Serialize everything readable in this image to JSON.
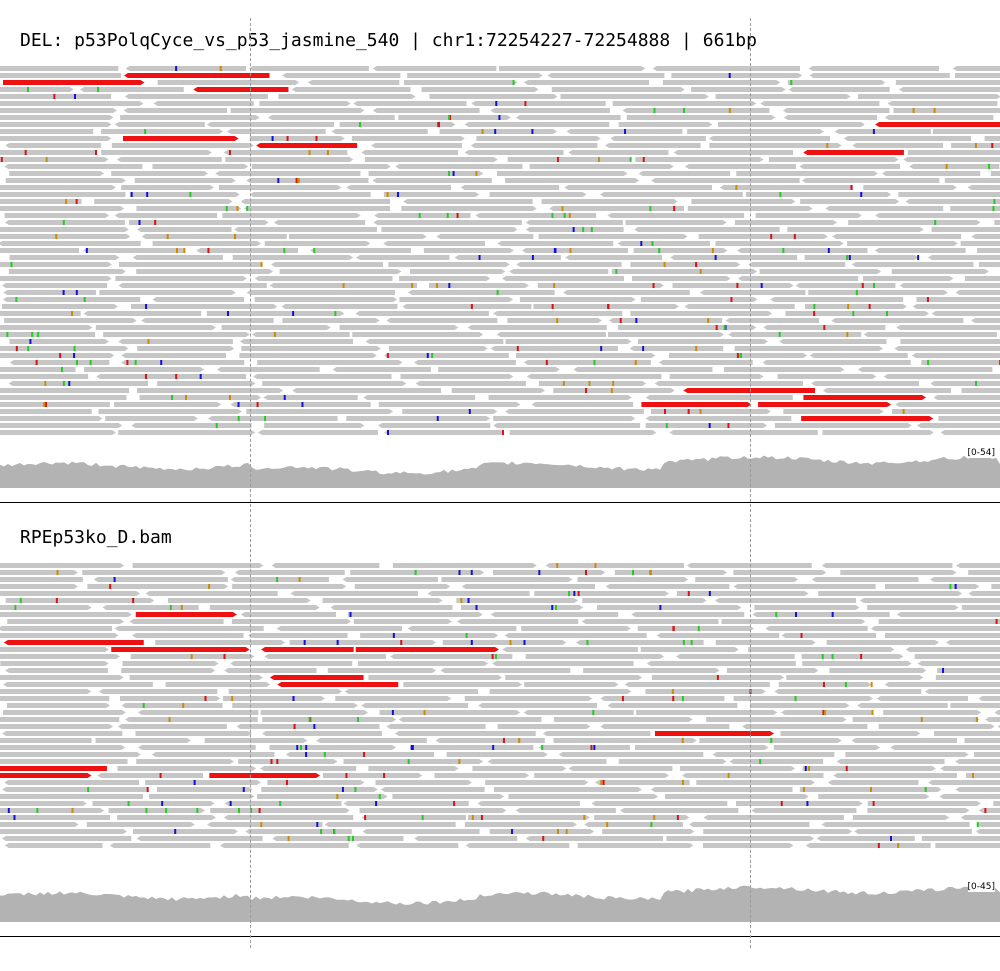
{
  "panels": [
    {
      "title": "DEL: p53PolqCyce_vs_p53_jasmine_540 | chr1:72254227-72254888 | 661bp",
      "coverage_range": "[0-54]"
    },
    {
      "title": "RPEp53ko_D.bam",
      "coverage_range": "[0-45]"
    }
  ],
  "colors": {
    "read": "#c6c6c6",
    "discordant": "#ee1111",
    "insertion": "#7a2be2",
    "coverage": "#b3b3b3",
    "mismatch_A": "#22cc22",
    "mismatch_C": "#1111dd",
    "mismatch_G": "#d18a00",
    "mismatch_T": "#dd1111"
  },
  "region": {
    "deletion_start_marker": "left breakpoint",
    "deletion_end_marker": "right breakpoint"
  }
}
